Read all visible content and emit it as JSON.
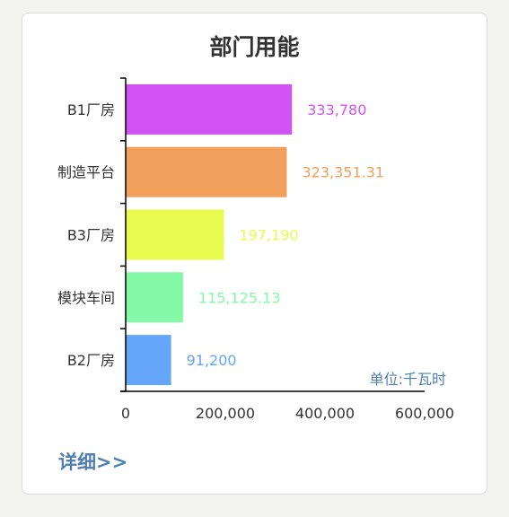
{
  "title": "部门用能",
  "unit_label": "单位:千瓦时",
  "detail_link": "详细>>",
  "chart_data": {
    "type": "bar",
    "orientation": "horizontal",
    "categories": [
      "B1厂房",
      "制造平台",
      "B3厂房",
      "模块车间",
      "B2厂房"
    ],
    "values": [
      333780,
      323351.31,
      197190,
      115125.13,
      91200
    ],
    "value_labels": [
      "333,780",
      "323,351.31",
      "197,190",
      "115,125.13",
      "91,200"
    ],
    "colors": [
      "#d053f4",
      "#f0a05a",
      "#e6fb4d",
      "#86f9a8",
      "#64a6f8"
    ],
    "x_ticks": [
      "0",
      "200,000",
      "400,000",
      "600,000"
    ],
    "xlim": [
      0,
      600000
    ],
    "grid": false,
    "legend": "none"
  }
}
